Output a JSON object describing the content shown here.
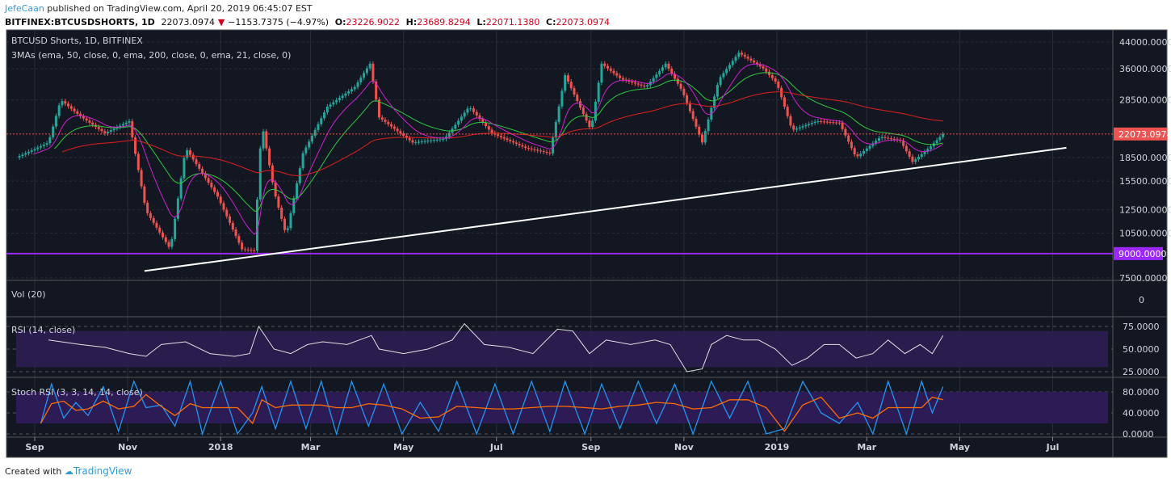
{
  "header": {
    "author": "JefeCaan",
    "published": "published on TradingView.com, April 20, 2019 06:45:07 EST",
    "symbol": "BITFINEX:BTCUSDSHORTS, 1D",
    "last": "22073.0974",
    "change": "−1153.7375 (−4.97%)",
    "o_label": "O:",
    "o": "23226.9022",
    "h_label": "H:",
    "h": "23689.8294",
    "l_label": "L:",
    "l": "22071.1380",
    "c_label": "C:",
    "c": "22073.0974"
  },
  "footer": {
    "created_with": "Created with",
    "brand": "TradingView"
  },
  "colors": {
    "background": "#131722",
    "up": "#26a69a",
    "down": "#ef5350",
    "ema50": "#2ecc40",
    "ema200": "#e0201c",
    "ema21": "#d020d0",
    "level": "#9c27ff",
    "trendline": "#ffffff",
    "rsi": "#e0e0e0",
    "stoch_k": "#2196f3",
    "stoch_d": "#ff6d00"
  },
  "chart_data": [
    {
      "type": "candlestick",
      "title": "BTCUSD Shorts, 1D, BITFINEX",
      "indicator_label": "3MAs (ema, 50, close, 0, ema, 200, close, 0, ema, 21, close, 0)",
      "y_scale": "log",
      "ylim": [
        7500,
        46000
      ],
      "y_ticks": [
        "44000.0000",
        "36000.0000",
        "28500.0000",
        "18500.0000",
        "15500.0000",
        "12500.0000",
        "10500.0000",
        "7500.0000"
      ],
      "y_tick_values": [
        44000,
        36000,
        28500,
        18500,
        15500,
        12500,
        10500,
        7500
      ],
      "x_ticks": [
        "Sep",
        "Nov",
        "2018",
        "Mar",
        "May",
        "Jul",
        "Sep",
        "Nov",
        "2019",
        "Mar",
        "May",
        "Jul"
      ],
      "x_tick_dates": [
        "2017-09-01",
        "2017-11-01",
        "2018-01-01",
        "2018-03-01",
        "2018-05-01",
        "2018-07-01",
        "2018-09-01",
        "2018-11-01",
        "2019-01-01",
        "2019-03-01",
        "2019-05-01",
        "2019-07-01"
      ],
      "xlim": [
        "2017-08-10",
        "2019-08-10"
      ],
      "close_series": [
        [
          "2017-08-20",
          18500
        ],
        [
          "2017-09-10",
          20700
        ],
        [
          "2017-09-18",
          28500
        ],
        [
          "2017-10-01",
          25200
        ],
        [
          "2017-10-17",
          22200
        ],
        [
          "2017-11-02",
          24300
        ],
        [
          "2017-11-13",
          12400
        ],
        [
          "2017-11-29",
          9300
        ],
        [
          "2017-12-09",
          19900
        ],
        [
          "2017-12-30",
          13800
        ],
        [
          "2018-01-15",
          9300
        ],
        [
          "2018-01-23",
          9200
        ],
        [
          "2018-01-28",
          24000
        ],
        [
          "2018-02-05",
          14400
        ],
        [
          "2018-02-13",
          10300
        ],
        [
          "2018-02-24",
          19100
        ],
        [
          "2018-03-12",
          27100
        ],
        [
          "2018-03-30",
          31400
        ],
        [
          "2018-04-09",
          37400
        ],
        [
          "2018-04-15",
          25000
        ],
        [
          "2018-05-07",
          20700
        ],
        [
          "2018-05-28",
          21300
        ],
        [
          "2018-06-13",
          27100
        ],
        [
          "2018-06-28",
          22200
        ],
        [
          "2018-07-20",
          19900
        ],
        [
          "2018-08-05",
          19100
        ],
        [
          "2018-08-15",
          34300
        ],
        [
          "2018-09-01",
          22700
        ],
        [
          "2018-09-08",
          37400
        ],
        [
          "2018-09-21",
          33300
        ],
        [
          "2018-10-07",
          31400
        ],
        [
          "2018-10-20",
          37400
        ],
        [
          "2018-10-31",
          30400
        ],
        [
          "2018-11-13",
          20700
        ],
        [
          "2018-11-24",
          33300
        ],
        [
          "2018-12-07",
          40600
        ],
        [
          "2018-12-23",
          36100
        ],
        [
          "2019-01-01",
          32300
        ],
        [
          "2019-01-11",
          22700
        ],
        [
          "2019-01-27",
          24300
        ],
        [
          "2019-02-11",
          24000
        ],
        [
          "2019-02-22",
          18500
        ],
        [
          "2019-03-10",
          21600
        ],
        [
          "2019-03-23",
          21000
        ],
        [
          "2019-03-31",
          17900
        ],
        [
          "2019-04-11",
          19900
        ],
        [
          "2019-04-20",
          22073.0974
        ]
      ],
      "last_price_label": "22073.0974",
      "horizontal_level": {
        "value": 9000,
        "label": "9000.0000"
      },
      "trendline": {
        "start": [
          "2017-11-12",
          7900
        ],
        "end": [
          "2019-07-10",
          19900
        ]
      },
      "moving_averages": [
        {
          "type": "ema",
          "length": 50
        },
        {
          "type": "ema",
          "length": 200
        },
        {
          "type": "ema",
          "length": 21
        }
      ]
    },
    {
      "type": "bar",
      "title": "Vol (20)",
      "y_ticks": [
        "0"
      ]
    },
    {
      "type": "line",
      "title": "RSI (14, close)",
      "ylim": [
        15,
        90
      ],
      "band": [
        30,
        70
      ],
      "y_ticks": [
        "75.0000",
        "50.0000",
        "25.0000"
      ],
      "y_tick_values": [
        75,
        50,
        25
      ],
      "series": [
        [
          "2017-09-10",
          60
        ],
        [
          "2017-10-01",
          55
        ],
        [
          "2017-10-17",
          52
        ],
        [
          "2017-11-02",
          45
        ],
        [
          "2017-11-13",
          42
        ],
        [
          "2017-11-23",
          55
        ],
        [
          "2017-12-09",
          58
        ],
        [
          "2017-12-25",
          45
        ],
        [
          "2018-01-10",
          42
        ],
        [
          "2018-01-20",
          45
        ],
        [
          "2018-01-26",
          75
        ],
        [
          "2018-02-05",
          50
        ],
        [
          "2018-02-16",
          45
        ],
        [
          "2018-02-27",
          55
        ],
        [
          "2018-03-09",
          58
        ],
        [
          "2018-03-25",
          55
        ],
        [
          "2018-04-10",
          65
        ],
        [
          "2018-04-15",
          50
        ],
        [
          "2018-05-01",
          45
        ],
        [
          "2018-05-17",
          50
        ],
        [
          "2018-06-02",
          60
        ],
        [
          "2018-06-10",
          78
        ],
        [
          "2018-06-23",
          55
        ],
        [
          "2018-07-09",
          52
        ],
        [
          "2018-07-25",
          45
        ],
        [
          "2018-08-10",
          72
        ],
        [
          "2018-08-20",
          70
        ],
        [
          "2018-08-31",
          45
        ],
        [
          "2018-09-11",
          60
        ],
        [
          "2018-09-27",
          55
        ],
        [
          "2018-10-13",
          60
        ],
        [
          "2018-10-23",
          55
        ],
        [
          "2018-11-03",
          25
        ],
        [
          "2018-11-13",
          28
        ],
        [
          "2018-11-19",
          55
        ],
        [
          "2018-11-29",
          65
        ],
        [
          "2018-12-10",
          60
        ],
        [
          "2018-12-20",
          60
        ],
        [
          "2018-12-31",
          50
        ],
        [
          "2019-01-11",
          32
        ],
        [
          "2019-01-21",
          40
        ],
        [
          "2019-02-01",
          55
        ],
        [
          "2019-02-11",
          55
        ],
        [
          "2019-02-22",
          40
        ],
        [
          "2019-03-05",
          45
        ],
        [
          "2019-03-15",
          60
        ],
        [
          "2019-03-26",
          45
        ],
        [
          "2019-04-05",
          55
        ],
        [
          "2019-04-13",
          45
        ],
        [
          "2019-04-20",
          65
        ]
      ]
    },
    {
      "type": "line",
      "title": "Stoch RSI (3, 3, 14, 14, close)",
      "ylim": [
        -5,
        105
      ],
      "band": [
        20,
        80
      ],
      "y_ticks": [
        "80.0000",
        "40.0000",
        "0.0000"
      ],
      "y_tick_values": [
        80,
        40,
        0
      ],
      "series": [
        [
          "2017-09-05",
          20
        ],
        [
          "2017-09-12",
          95
        ],
        [
          "2017-09-20",
          30
        ],
        [
          "2017-09-28",
          60
        ],
        [
          "2017-10-06",
          35
        ],
        [
          "2017-10-16",
          90
        ],
        [
          "2017-10-26",
          5
        ],
        [
          "2017-11-05",
          100
        ],
        [
          "2017-11-13",
          50
        ],
        [
          "2017-11-23",
          55
        ],
        [
          "2017-12-02",
          15
        ],
        [
          "2017-12-12",
          100
        ],
        [
          "2017-12-20",
          0
        ],
        [
          "2018-01-01",
          100
        ],
        [
          "2018-01-12",
          0
        ],
        [
          "2018-01-22",
          40
        ],
        [
          "2018-01-28",
          90
        ],
        [
          "2018-02-06",
          10
        ],
        [
          "2018-02-16",
          100
        ],
        [
          "2018-02-26",
          10
        ],
        [
          "2018-03-08",
          100
        ],
        [
          "2018-03-18",
          0
        ],
        [
          "2018-03-28",
          100
        ],
        [
          "2018-04-08",
          15
        ],
        [
          "2018-04-18",
          95
        ],
        [
          "2018-04-30",
          0
        ],
        [
          "2018-05-12",
          60
        ],
        [
          "2018-05-24",
          5
        ],
        [
          "2018-06-05",
          100
        ],
        [
          "2018-06-18",
          0
        ],
        [
          "2018-06-30",
          95
        ],
        [
          "2018-07-12",
          0
        ],
        [
          "2018-07-24",
          100
        ],
        [
          "2018-08-05",
          5
        ],
        [
          "2018-08-15",
          100
        ],
        [
          "2018-08-28",
          0
        ],
        [
          "2018-09-08",
          95
        ],
        [
          "2018-09-20",
          10
        ],
        [
          "2018-10-02",
          100
        ],
        [
          "2018-10-14",
          20
        ],
        [
          "2018-10-26",
          95
        ],
        [
          "2018-11-07",
          0
        ],
        [
          "2018-11-19",
          100
        ],
        [
          "2018-12-01",
          30
        ],
        [
          "2018-12-13",
          100
        ],
        [
          "2018-12-25",
          0
        ],
        [
          "2019-01-06",
          10
        ],
        [
          "2019-01-18",
          100
        ],
        [
          "2019-01-30",
          40
        ],
        [
          "2019-02-11",
          20
        ],
        [
          "2019-02-23",
          60
        ],
        [
          "2019-03-05",
          0
        ],
        [
          "2019-03-15",
          100
        ],
        [
          "2019-03-27",
          0
        ],
        [
          "2019-04-06",
          100
        ],
        [
          "2019-04-13",
          40
        ],
        [
          "2019-04-20",
          90
        ]
      ]
    }
  ]
}
